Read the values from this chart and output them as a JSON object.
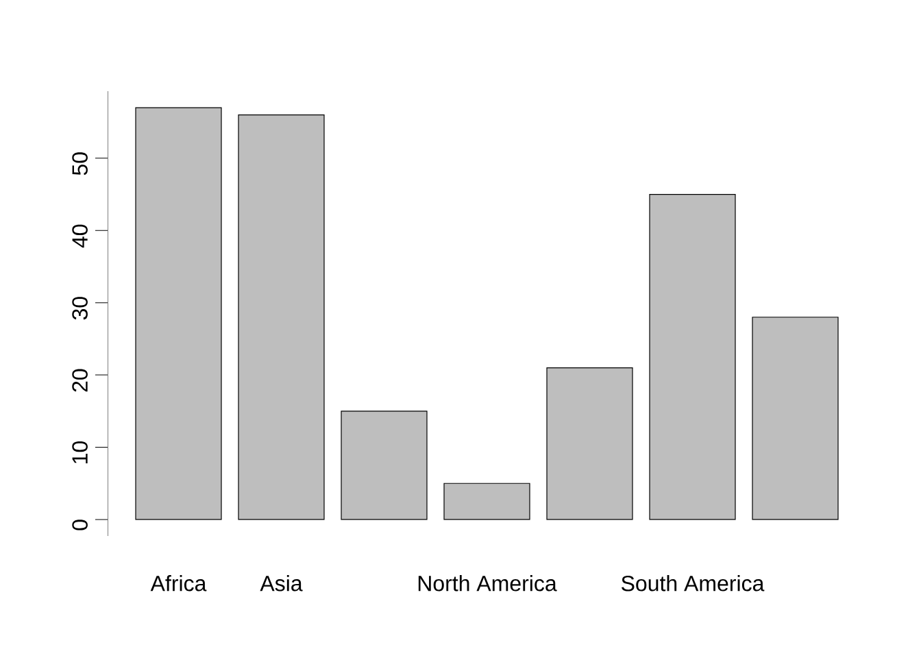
{
  "chart_data": {
    "type": "bar",
    "categories": [
      "Africa",
      "Asia",
      null,
      "North America",
      null,
      "South America",
      null
    ],
    "values": [
      57,
      56,
      15,
      5,
      21,
      45,
      28
    ],
    "color": "#bebebe",
    "ylim": [
      -2.28,
      59.28
    ],
    "yticks": [
      0,
      10,
      20,
      30,
      40,
      50
    ]
  }
}
